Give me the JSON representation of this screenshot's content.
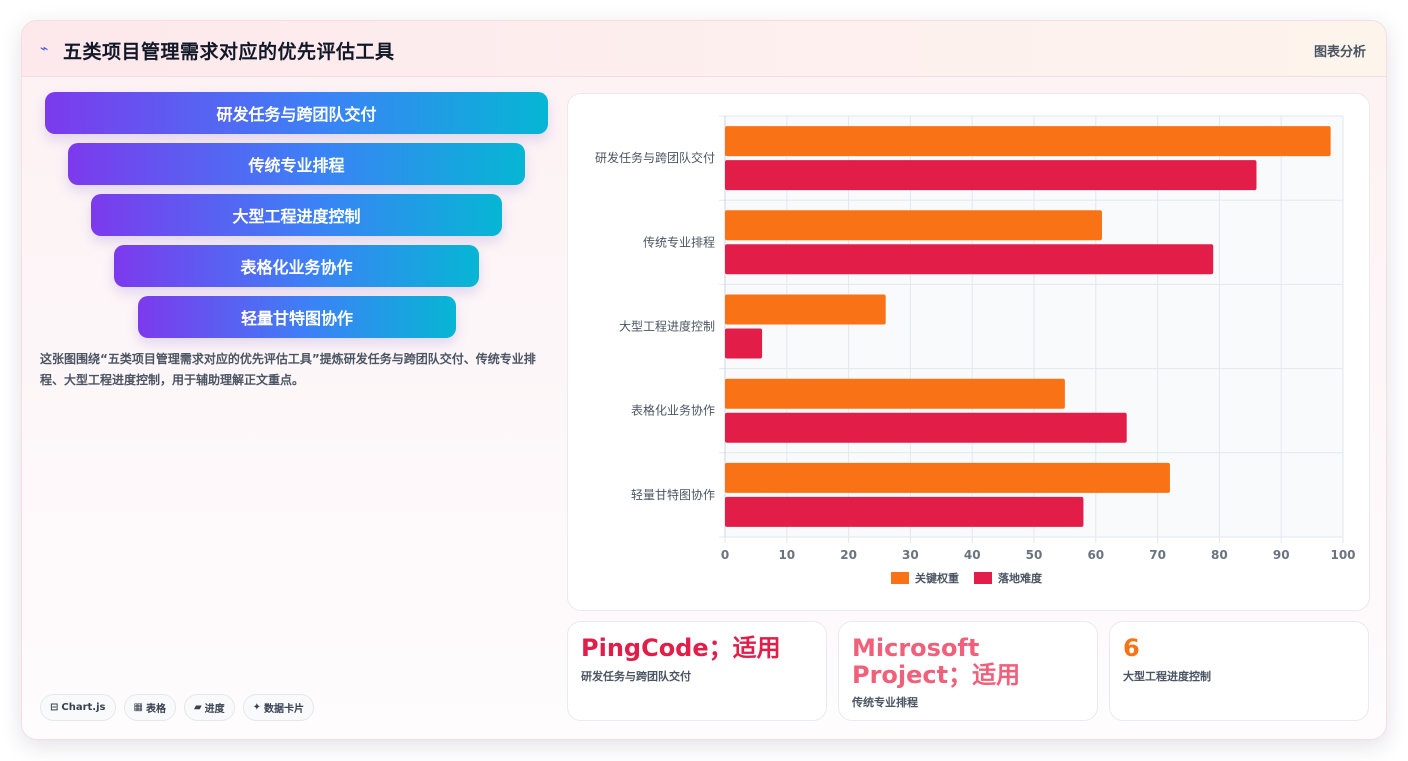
{
  "header": {
    "icon": "chart-line-icon",
    "icon_glyph": "⌁",
    "title": "五类项目管理需求对应的优先评估工具",
    "right_label": "图表分析"
  },
  "funnel": {
    "items": [
      "研发任务与跨团队交付",
      "传统专业排程",
      "大型工程进度控制",
      "表格化业务协作",
      "轻量甘特图协作"
    ]
  },
  "description": "这张图围绕“五类项目管理需求对应的优先评估工具”提炼研发任务与跨团队交付、传统专业排程、大型工程进度控制，用于辅助理解正文重点。",
  "tags": [
    {
      "icon": "⊟",
      "icon_name": "chart-icon",
      "label": "Chart.js"
    },
    {
      "icon": "▦",
      "icon_name": "table-icon",
      "label": "表格"
    },
    {
      "icon": "▰",
      "icon_name": "progress-icon",
      "label": "进度"
    },
    {
      "icon": "✦",
      "icon_name": "sparkle-icon",
      "label": "数据卡片"
    }
  ],
  "chart_data": {
    "type": "bar",
    "orientation": "horizontal",
    "categories": [
      "研发任务与跨团队交付",
      "传统专业排程",
      "大型工程进度控制",
      "表格化业务协作",
      "轻量甘特图协作"
    ],
    "series": [
      {
        "name": "关键权重",
        "values": [
          98,
          61,
          26,
          55,
          72
        ],
        "color": "#f97316"
      },
      {
        "name": "落地难度",
        "values": [
          86,
          79,
          6,
          65,
          58
        ],
        "color": "#e11d48"
      }
    ],
    "xlim": [
      0,
      100
    ],
    "xticks": [
      0,
      10,
      20,
      30,
      40,
      50,
      60,
      70,
      80,
      90,
      100
    ],
    "grid": true,
    "legend": "bottom"
  },
  "stats": [
    {
      "value": "PingCode；适用",
      "label": "研发任务与跨团队交付",
      "color": "#e11d48"
    },
    {
      "value": "Microsoft Project；适用",
      "label": "传统专业排程",
      "color": "#f0607a"
    },
    {
      "value": "6",
      "label": "大型工程进度控制",
      "color": "#f97316"
    }
  ]
}
